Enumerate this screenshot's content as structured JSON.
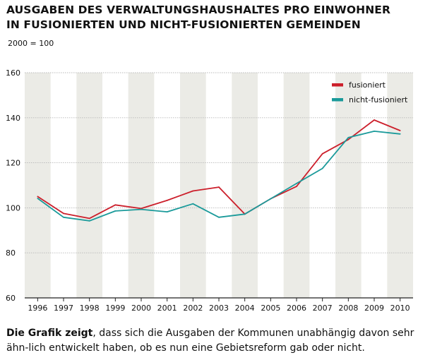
{
  "header": {
    "title_line1": "AUSGABEN DES VERWALTUNGSHAUSHALTES PRO EINWOHNER",
    "title_line2": "IN FUSIONIERTEN UND NICHT-FUSIONIERTEN GEMEINDEN",
    "subtitle": "2000 = 100"
  },
  "caption": {
    "bold": "Die Grafik zeigt",
    "text": ", dass sich die Ausgaben der Kommunen unabhängig davon sehr ähn-lich entwickelt haben, ob es nun eine Gebietsreform gab oder nicht."
  },
  "colors": {
    "fusioniert": "#cc1f2b",
    "nicht_fusioniert": "#1a9a9a",
    "stripe": "#ebebe6",
    "grid": "#b8b8b8"
  },
  "chart_data": {
    "type": "line",
    "title": "AUSGABEN DES VERWALTUNGSHAUSHALTES PRO EINWOHNER IN FUSIONIERTEN UND NICHT-FUSIONIERTEN GEMEINDEN",
    "categories": [
      "1996",
      "1997",
      "1998",
      "1999",
      "2000",
      "2001",
      "2002",
      "2003",
      "2004",
      "2005",
      "2006",
      "2007",
      "2008",
      "2009",
      "2010"
    ],
    "y_ticks": [
      "60",
      "80",
      "100",
      "120",
      "140",
      "160"
    ],
    "ylim": [
      60,
      160
    ],
    "legend_position": "top-right",
    "series": [
      {
        "name": "fusioniert",
        "color_key": "fusioniert",
        "values": [
          105,
          97.5,
          95.3,
          101.3,
          99.7,
          103.3,
          107.5,
          109.2,
          97.2,
          104,
          109.5,
          124,
          130.3,
          139,
          134.3
        ]
      },
      {
        "name": "nicht-fusioniert",
        "color_key": "nicht_fusioniert",
        "values": [
          104.2,
          95.8,
          94.2,
          98.6,
          99.3,
          98.2,
          101.8,
          95.8,
          97.2,
          104,
          110.8,
          117.5,
          131.2,
          134,
          132.8
        ]
      }
    ]
  }
}
